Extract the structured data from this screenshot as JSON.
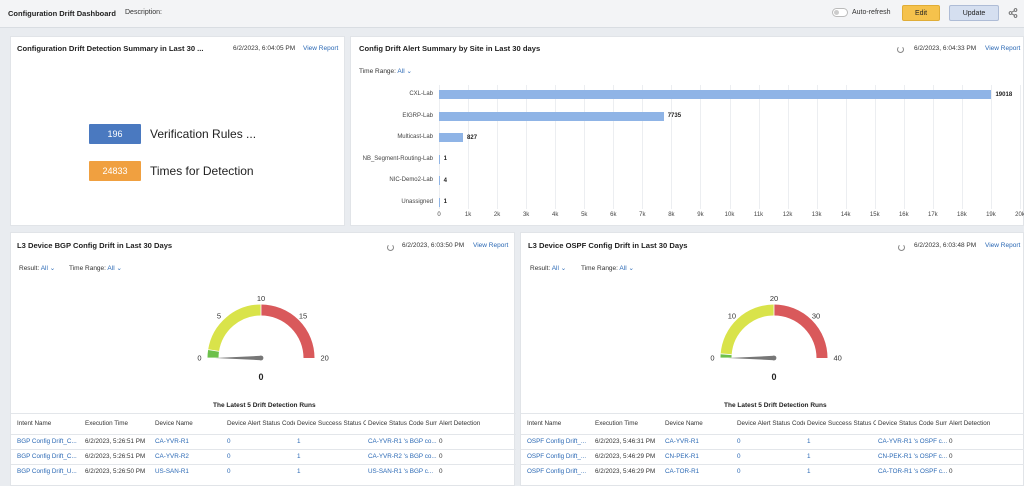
{
  "header": {
    "title": "Configuration Drift Dashboard",
    "description_label": "Description:",
    "auto_refresh_label": "Auto-refresh",
    "edit_label": "Edit",
    "update_label": "Update"
  },
  "summary_panel": {
    "title": "Configuration Drift Detection Summary in Last 30 ...",
    "timestamp": "6/2/2023, 6:04:05 PM",
    "view_report": "View Report",
    "kpis": [
      {
        "value": "196",
        "label": "Verification Rules ...",
        "color": "#4a79c0"
      },
      {
        "value": "24833",
        "label": "Times for Detection",
        "color": "#f0a040"
      }
    ]
  },
  "site_panel": {
    "title": "Config Drift Alert Summary by Site in Last 30 days",
    "timestamp": "6/2/2023, 6:04:33 PM",
    "view_report": "View Report",
    "filter_label": "Time Range:",
    "filter_value": "All",
    "chart_data": {
      "type": "bar",
      "orientation": "horizontal",
      "categories": [
        "CXL-Lab",
        "EIGRP-Lab",
        "Multicast-Lab",
        "NB_Segment-Routing-Lab",
        "NIC-Demo2-Lab",
        "Unassigned"
      ],
      "values": [
        19018,
        7735,
        827,
        1,
        4,
        1
      ],
      "value_labels": [
        "19018",
        "7735",
        "827",
        "1",
        "4",
        "1"
      ],
      "xlim": [
        0,
        20000
      ],
      "xticks": [
        "0",
        "1k",
        "2k",
        "3k",
        "4k",
        "5k",
        "6k",
        "7k",
        "8k",
        "9k",
        "10k",
        "11k",
        "12k",
        "13k",
        "14k",
        "15k",
        "16k",
        "17k",
        "18k",
        "19k",
        "20k"
      ],
      "bar_color": "#8fb4e6"
    }
  },
  "bgp_panel": {
    "title": "L3 Device BGP Config Drift in Last 30 Days",
    "timestamp": "6/2/2023, 6:03:50 PM",
    "view_report": "View Report",
    "filters": [
      {
        "label": "Result:",
        "value": "All"
      },
      {
        "label": "Time Range:",
        "value": "All"
      }
    ],
    "gauge": {
      "value": 0,
      "value_text": "0",
      "max": 20,
      "ticks": [
        "0",
        "5",
        "10",
        "15",
        "20"
      ],
      "bands": [
        {
          "from": 0,
          "to": 1,
          "color": "#6cc04a"
        },
        {
          "from": 1,
          "to": 10,
          "color": "#d9e34a"
        },
        {
          "from": 10,
          "to": 20,
          "color": "#d9595b"
        }
      ]
    },
    "table": {
      "title": "The Latest 5 Drift Detection Runs",
      "columns": [
        "Intent Name",
        "Execution Time",
        "Device Name",
        "Device Alert Status Code",
        "Device Success Status Code",
        "Device Status Code Summary",
        "Alert Detection"
      ],
      "rows": [
        [
          "BGP Config Drift_C...",
          "6/2/2023, 5:26:51 PM",
          "CA-YVR-R1",
          "0",
          "1",
          "CA-YVR-R1 's BGP co...",
          "0"
        ],
        [
          "BGP Config Drift_C...",
          "6/2/2023, 5:26:51 PM",
          "CA-YVR-R2",
          "0",
          "1",
          "CA-YVR-R2 's BGP co...",
          "0"
        ],
        [
          "BGP Config Drift_U...",
          "6/2/2023, 5:26:50 PM",
          "US-SAN-R1",
          "0",
          "1",
          "US-SAN-R1 's BGP c...",
          "0"
        ]
      ]
    }
  },
  "ospf_panel": {
    "title": "L3 Device OSPF Config Drift in Last 30 Days",
    "timestamp": "6/2/2023, 6:03:48 PM",
    "view_report": "View Report",
    "filters": [
      {
        "label": "Result:",
        "value": "All"
      },
      {
        "label": "Time Range:",
        "value": "All"
      }
    ],
    "gauge": {
      "value": 0,
      "value_text": "0",
      "max": 40,
      "ticks": [
        "0",
        "10",
        "20",
        "30",
        "40"
      ],
      "bands": [
        {
          "from": 0,
          "to": 1,
          "color": "#6cc04a"
        },
        {
          "from": 1,
          "to": 20,
          "color": "#d9e34a"
        },
        {
          "from": 20,
          "to": 40,
          "color": "#d9595b"
        }
      ]
    },
    "table": {
      "title": "The Latest 5 Drift Detection Runs",
      "columns": [
        "Intent Name",
        "Execution Time",
        "Device Name",
        "Device Alert Status Code",
        "Device Success Status Code",
        "Device Status Code Summary",
        "Alert Detection"
      ],
      "rows": [
        [
          "OSPF Config Drift_...",
          "6/2/2023, 5:46:31 PM",
          "CA-YVR-R1",
          "0",
          "1",
          "CA-YVR-R1 's OSPF c...",
          "0"
        ],
        [
          "OSPF Config Drift_...",
          "6/2/2023, 5:46:29 PM",
          "CN-PEK-R1",
          "0",
          "1",
          "CN-PEK-R1 's OSPF c...",
          "0"
        ],
        [
          "OSPF Config Drift_...",
          "6/2/2023, 5:46:29 PM",
          "CA-TOR-R1",
          "0",
          "1",
          "CA-TOR-R1 's OSPF c...",
          "0"
        ]
      ]
    }
  }
}
